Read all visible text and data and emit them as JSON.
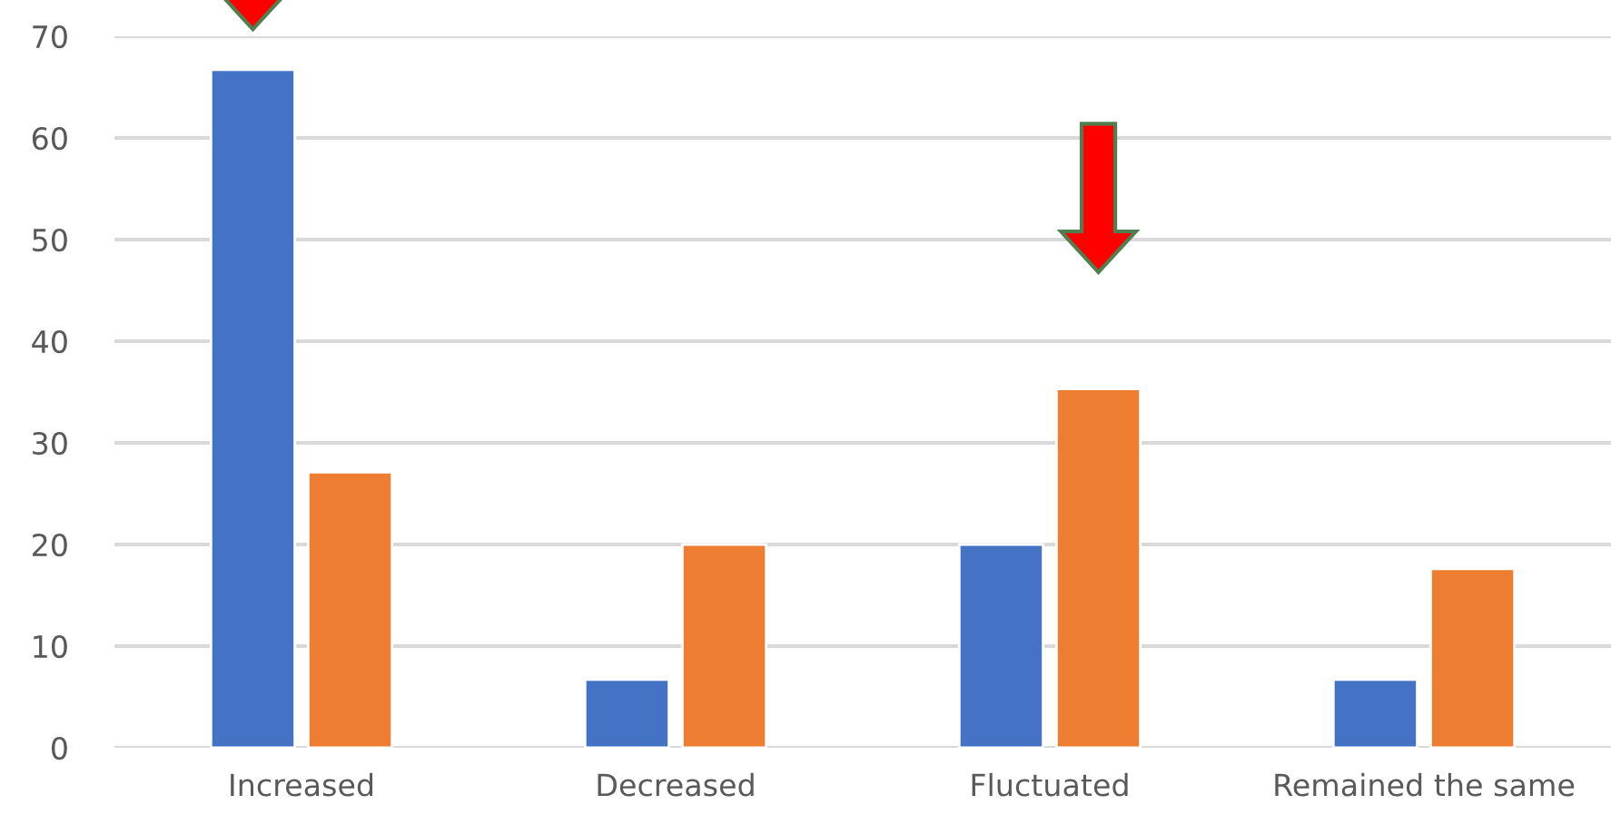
{
  "chart_data": {
    "type": "bar",
    "categories": [
      "Increased",
      "Decreased",
      "Fluctuated",
      "Remained the same"
    ],
    "series": [
      {
        "color": "#4472c4",
        "values": [
          66.7,
          6.7,
          20,
          6.7
        ]
      },
      {
        "color": "#ed7d31",
        "values": [
          27.1,
          20,
          35.3,
          17.6
        ]
      }
    ],
    "ylim": [
      0,
      70
    ],
    "yticks": [
      0,
      10,
      20,
      30,
      40,
      50,
      60,
      70
    ],
    "grid": "y"
  }
}
